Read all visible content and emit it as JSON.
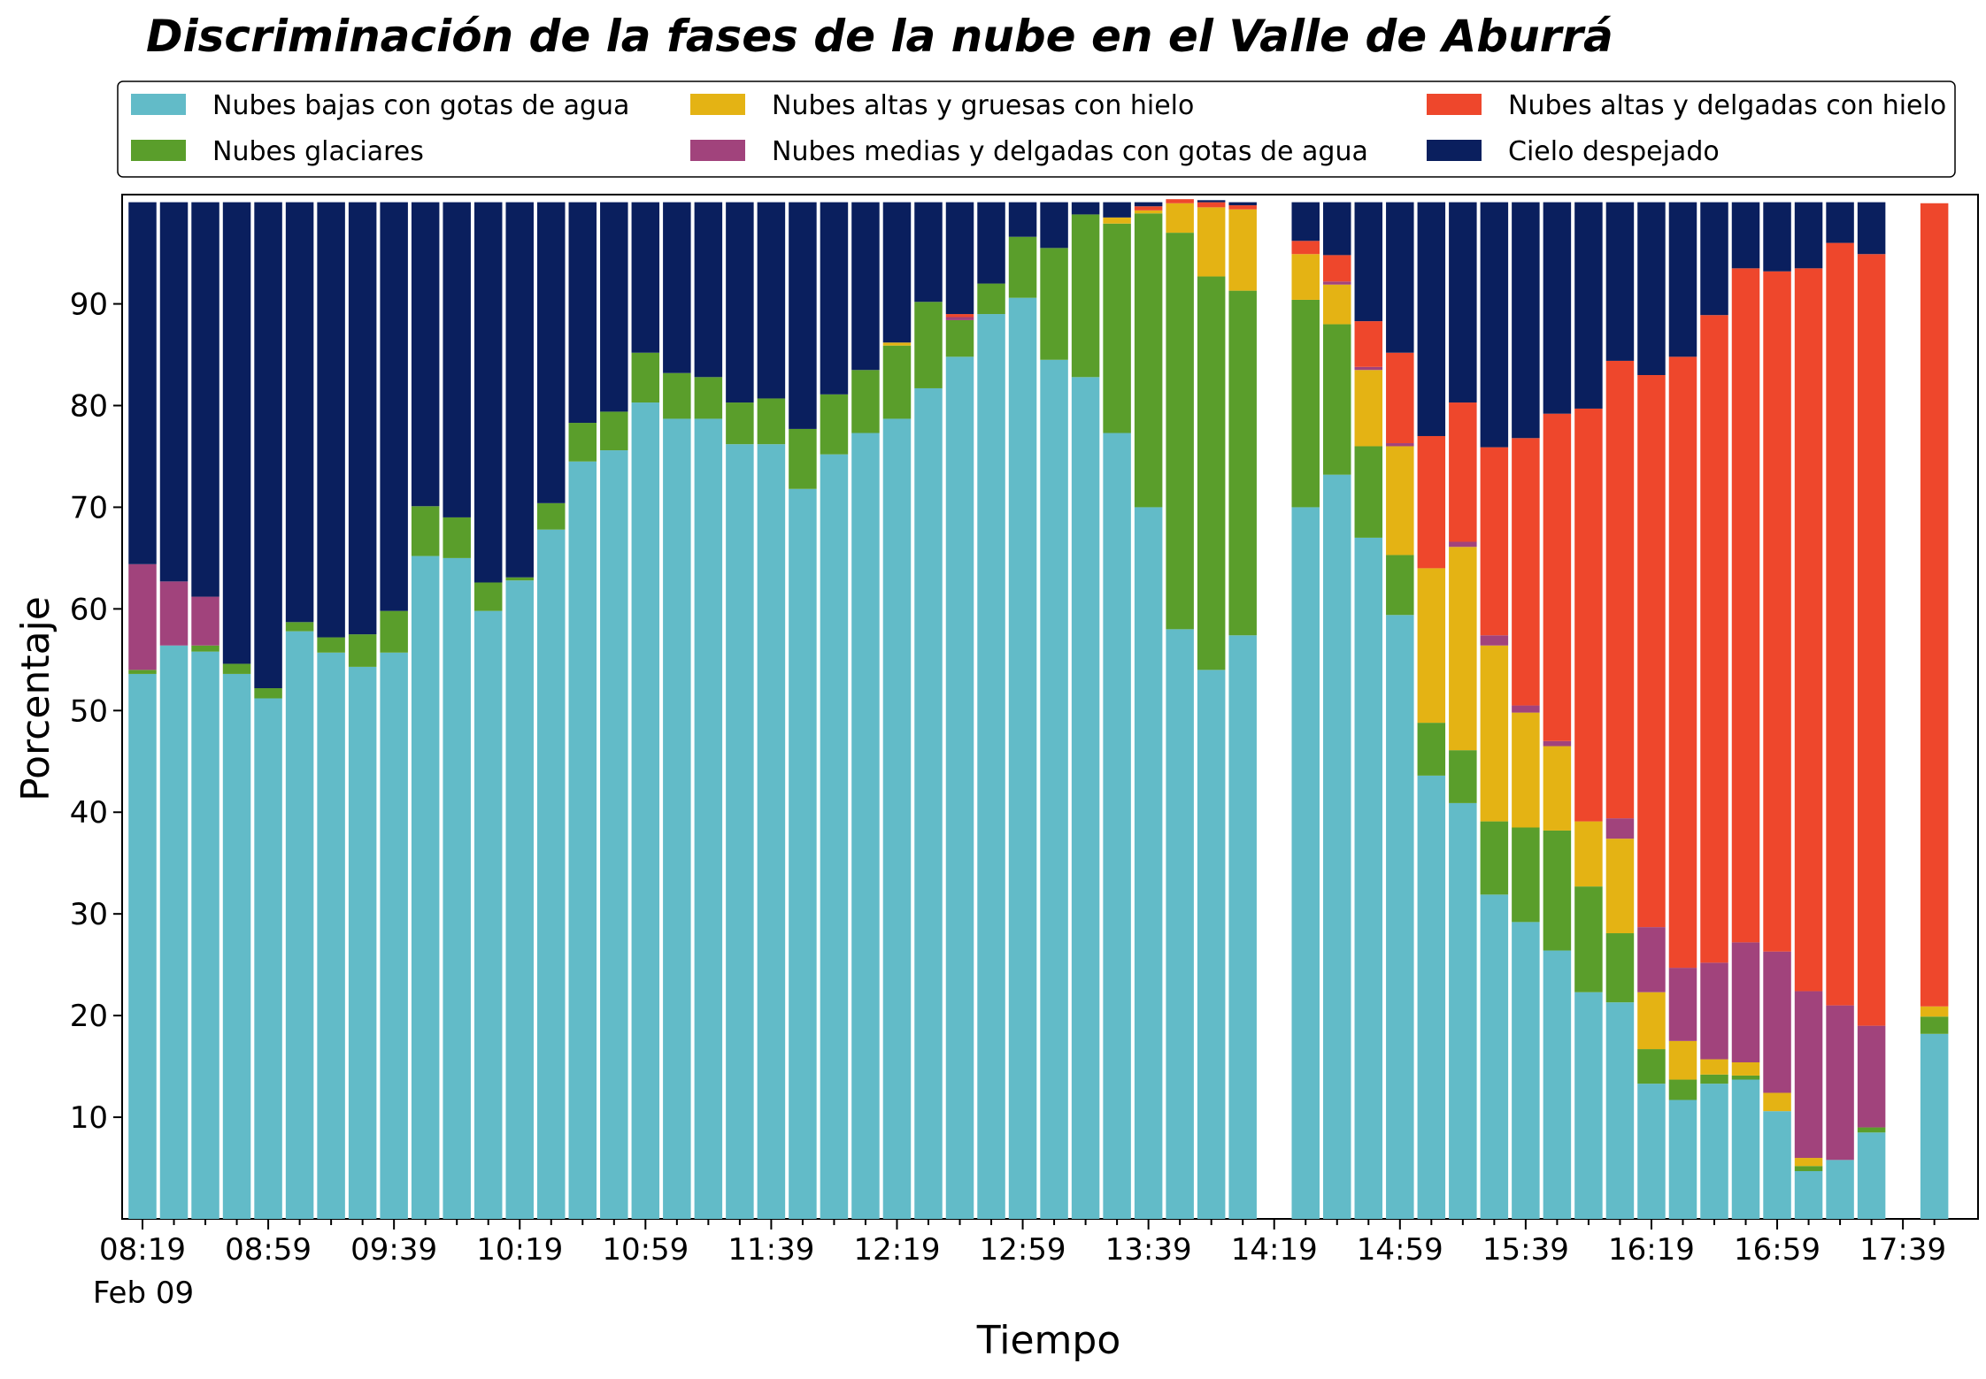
{
  "chart_data": {
    "type": "bar",
    "stacked": true,
    "title": "Discriminación de la fases de la nube en el Valle de Aburrá",
    "xlabel": "Tiempo",
    "ylabel": "Porcentaje",
    "ylim": [
      0,
      100
    ],
    "yticks": [
      10,
      20,
      30,
      40,
      50,
      60,
      70,
      80,
      90
    ],
    "xtick_labels": [
      "08:19",
      "08:59",
      "09:39",
      "10:19",
      "10:59",
      "11:39",
      "12:19",
      "12:59",
      "13:39",
      "14:19",
      "14:59",
      "15:39",
      "16:19",
      "16:59",
      "17:39"
    ],
    "date_label": "Feb 09",
    "legend_position": "top",
    "grid": false,
    "categories": [
      "08:19",
      "08:29",
      "08:39",
      "08:49",
      "08:59",
      "09:09",
      "09:19",
      "09:29",
      "09:39",
      "09:49",
      "09:59",
      "10:09",
      "10:19",
      "10:29",
      "10:39",
      "10:49",
      "10:59",
      "11:09",
      "11:19",
      "11:29",
      "11:39",
      "11:49",
      "11:59",
      "12:09",
      "12:19",
      "12:29",
      "12:39",
      "12:49",
      "12:59",
      "13:09",
      "13:19",
      "13:29",
      "13:39",
      "13:49",
      "13:59",
      "14:09",
      "14:19",
      "14:29",
      "14:39",
      "14:49",
      "14:59",
      "15:09",
      "15:19",
      "15:29",
      "15:39",
      "15:49",
      "15:59",
      "16:09",
      "16:19",
      "16:29",
      "16:39",
      "16:49",
      "16:59",
      "17:09",
      "17:19",
      "17:29",
      "17:39",
      "17:49"
    ],
    "series": [
      {
        "name": "Nubes bajas con gotas de agua",
        "color": "#62bbc8",
        "values": [
          53.6,
          56.4,
          55.8,
          53.6,
          51.2,
          57.8,
          55.7,
          54.3,
          55.7,
          65.2,
          65,
          59.8,
          62.8,
          67.8,
          74.5,
          75.6,
          80.3,
          78.7,
          78.7,
          76.2,
          76.2,
          71.8,
          75.2,
          77.3,
          78.7,
          81.7,
          84.8,
          89,
          90.6,
          84.5,
          82.8,
          77.3,
          70,
          58,
          54,
          57.4,
          null,
          70,
          73.2,
          67,
          59.4,
          43.6,
          40.9,
          31.9,
          29.2,
          26.4,
          22.3,
          21.3,
          13.3,
          11.7,
          13.3,
          13.7,
          10.6,
          4.7,
          5.8,
          8.5,
          null,
          18.2
        ]
      },
      {
        "name": "Nubes glaciares",
        "color": "#5a9e2b",
        "values": [
          0.4,
          0,
          0.6,
          1,
          1,
          0.9,
          1.5,
          3.2,
          4.1,
          4.9,
          4,
          2.8,
          0.3,
          2.6,
          3.8,
          3.8,
          4.9,
          4.5,
          4.1,
          4.1,
          4.5,
          5.9,
          5.9,
          6.2,
          7.2,
          8.5,
          3.6,
          3,
          6,
          11,
          16,
          20.6,
          28.9,
          39,
          38.7,
          33.9,
          null,
          20.4,
          14.8,
          9,
          5.9,
          5.2,
          5.2,
          7.2,
          9.3,
          11.8,
          10.4,
          6.8,
          3.4,
          2,
          0.9,
          0.4,
          0,
          0.5,
          0,
          0.5,
          null,
          1.7
        ]
      },
      {
        "name": "Nubes altas y gruesas con hielo",
        "color": "#e4b314",
        "values": [
          0,
          0,
          0,
          0,
          0,
          0,
          0,
          0,
          0,
          0,
          0,
          0,
          0,
          0,
          0,
          0,
          0,
          0,
          0,
          0,
          0,
          0,
          0,
          0,
          0.3,
          0,
          0,
          0,
          0,
          0,
          0,
          0.6,
          0.3,
          2.9,
          6.8,
          8,
          null,
          4.5,
          3.9,
          7.5,
          10.7,
          15.2,
          20,
          17.3,
          11.3,
          8.3,
          6.4,
          9.3,
          5.6,
          3.8,
          1.5,
          1.3,
          1.8,
          0.8,
          0,
          0,
          null,
          1
        ]
      },
      {
        "name": "Nubes medias y delgadas con gotas de agua",
        "color": "#a1437c",
        "values": [
          10.4,
          6.3,
          4.8,
          0,
          0,
          0,
          0,
          0,
          0,
          0,
          0,
          0,
          0,
          0,
          0,
          0,
          0,
          0,
          0,
          0,
          0,
          0,
          0,
          0,
          0,
          0,
          0.3,
          0,
          0,
          0,
          0,
          0,
          0,
          0,
          0,
          0,
          null,
          0,
          0.3,
          0.3,
          0.3,
          0,
          0.5,
          1,
          0.7,
          0.5,
          0,
          2,
          6.4,
          7.2,
          9.5,
          11.8,
          13.9,
          16.4,
          15.2,
          10,
          null,
          0
        ]
      },
      {
        "name": "Nubes altas y delgadas con hielo",
        "color": "#ee472c",
        "values": [
          0,
          0,
          0,
          0,
          0,
          0,
          0,
          0,
          0,
          0,
          0,
          0,
          0,
          0,
          0,
          0,
          0,
          0,
          0,
          0,
          0,
          0,
          0,
          0,
          0,
          0,
          0.3,
          0,
          0,
          0,
          0,
          0,
          0.4,
          0.4,
          0.5,
          0.4,
          null,
          1.3,
          2.6,
          4.5,
          8.9,
          13,
          13.7,
          18.5,
          26.3,
          32.2,
          40.6,
          45,
          54.3,
          60.1,
          63.7,
          66.3,
          66.9,
          71.1,
          75,
          75.9,
          null,
          79
        ]
      },
      {
        "name": "Cielo despejado",
        "color": "#0a1f5e",
        "values": [
          35.6,
          37.3,
          38.8,
          45.4,
          47.8,
          41.3,
          42.8,
          42.5,
          40.2,
          29.9,
          31,
          37.4,
          36.9,
          29.6,
          21.7,
          20.6,
          14.8,
          16.8,
          17.2,
          19.7,
          19.3,
          22.3,
          18.9,
          16.5,
          13.8,
          9.8,
          11,
          8,
          3.4,
          4.5,
          1.2,
          1.5,
          0.4,
          0,
          0.2,
          0.3,
          null,
          3.8,
          5.2,
          11.7,
          14.8,
          23,
          19.7,
          24.1,
          23.2,
          20.8,
          20.3,
          15.6,
          17,
          15.2,
          11.1,
          6.5,
          6.8,
          6.5,
          4,
          5.1,
          null,
          0
        ]
      }
    ]
  }
}
